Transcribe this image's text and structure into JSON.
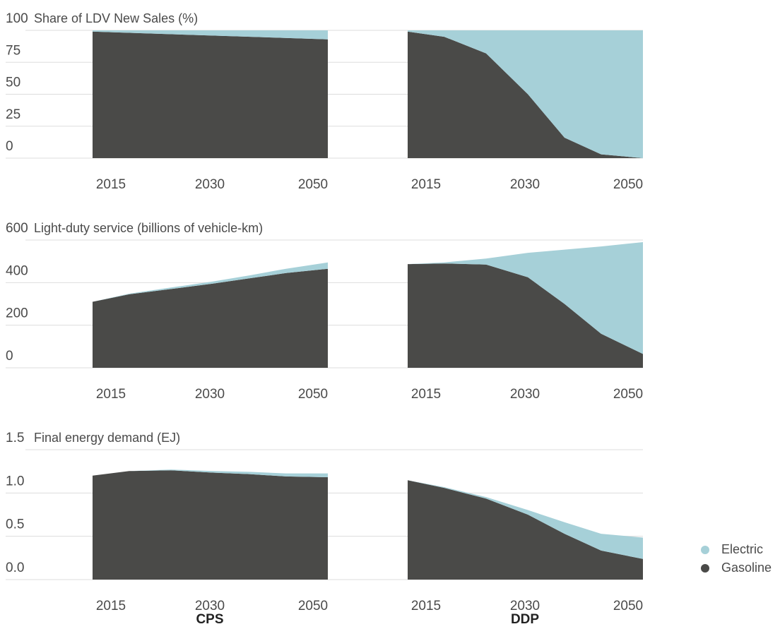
{
  "chart_data": [
    {
      "type": "area",
      "title": "Share of LDV New Sales (%)",
      "ylim": [
        0,
        100
      ],
      "yticks": [
        "100",
        "75",
        "50",
        "25",
        "0"
      ],
      "panels": [
        {
          "scenario": "CPS",
          "x": [
            2010,
            2055
          ],
          "x_ticks": [
            "2015",
            "2030",
            "2050"
          ],
          "series": [
            {
              "name": "Gasoline",
              "values": [
                99,
                93
              ]
            },
            {
              "name": "Electric",
              "values": [
                1,
                7
              ]
            }
          ]
        },
        {
          "scenario": "DDP",
          "x": [
            2010,
            2017,
            2025,
            2033,
            2040,
            2047,
            2055
          ],
          "x_ticks": [
            "2015",
            "2030",
            "2050"
          ],
          "series": [
            {
              "name": "Gasoline",
              "values": [
                99,
                95,
                82,
                50,
                16,
                3,
                0
              ]
            },
            {
              "name": "Electric",
              "values": [
                1,
                5,
                18,
                50,
                84,
                97,
                100
              ]
            }
          ]
        }
      ]
    },
    {
      "type": "area",
      "title": "Light-duty service (billions of vehicle-km)",
      "ylim": [
        0,
        600
      ],
      "yticks": [
        "600",
        "400",
        "200",
        "0"
      ],
      "panels": [
        {
          "scenario": "CPS",
          "x": [
            2010,
            2017,
            2025,
            2033,
            2040,
            2047,
            2055
          ],
          "x_ticks": [
            "2015",
            "2030",
            "2050"
          ],
          "series": [
            {
              "name": "Gasoline",
              "values": [
                310,
                345,
                370,
                395,
                420,
                445,
                465
              ]
            },
            {
              "name": "Electric",
              "values": [
                0,
                3,
                7,
                10,
                14,
                20,
                30
              ]
            }
          ]
        },
        {
          "scenario": "DDP",
          "x": [
            2010,
            2017,
            2025,
            2033,
            2040,
            2047,
            2055
          ],
          "x_ticks": [
            "2015",
            "2030",
            "2050"
          ],
          "series": [
            {
              "name": "Gasoline",
              "values": [
                487,
                490,
                485,
                425,
                300,
                160,
                65
              ]
            },
            {
              "name": "Electric",
              "values": [
                0,
                5,
                28,
                115,
                255,
                410,
                525
              ]
            }
          ]
        }
      ]
    },
    {
      "type": "area",
      "title": "Final energy demand (EJ)",
      "ylim": [
        -0.2,
        1.5
      ],
      "yticks": [
        "1.5",
        "1.0",
        "0.5",
        "0.0"
      ],
      "panels": [
        {
          "scenario": "CPS",
          "x": [
            2010,
            2017,
            2025,
            2033,
            2040,
            2047,
            2055
          ],
          "x_ticks": [
            "2015",
            "2030",
            "2050"
          ],
          "series": [
            {
              "name": "Gasoline",
              "values": [
                1.16,
                1.22,
                1.23,
                1.2,
                1.18,
                1.15,
                1.14
              ]
            },
            {
              "name": "Electric",
              "values": [
                0,
                0,
                0.01,
                0.02,
                0.03,
                0.04,
                0.05
              ]
            }
          ]
        },
        {
          "scenario": "DDP",
          "x": [
            2010,
            2017,
            2025,
            2033,
            2040,
            2047,
            2055
          ],
          "x_ticks": [
            "2015",
            "2030",
            "2050"
          ],
          "series": [
            {
              "name": "Gasoline",
              "values": [
                1.1,
                1.0,
                0.86,
                0.65,
                0.4,
                0.18,
                0.07
              ]
            },
            {
              "name": "Electric",
              "values": [
                0,
                0.01,
                0.02,
                0.06,
                0.15,
                0.22,
                0.28
              ]
            }
          ]
        }
      ]
    }
  ],
  "scenarios": [
    "CPS",
    "DDP"
  ],
  "legend": [
    {
      "name": "Electric",
      "color": "#a6d0d8"
    },
    {
      "name": "Gasoline",
      "color": "#4a4a48"
    }
  ]
}
